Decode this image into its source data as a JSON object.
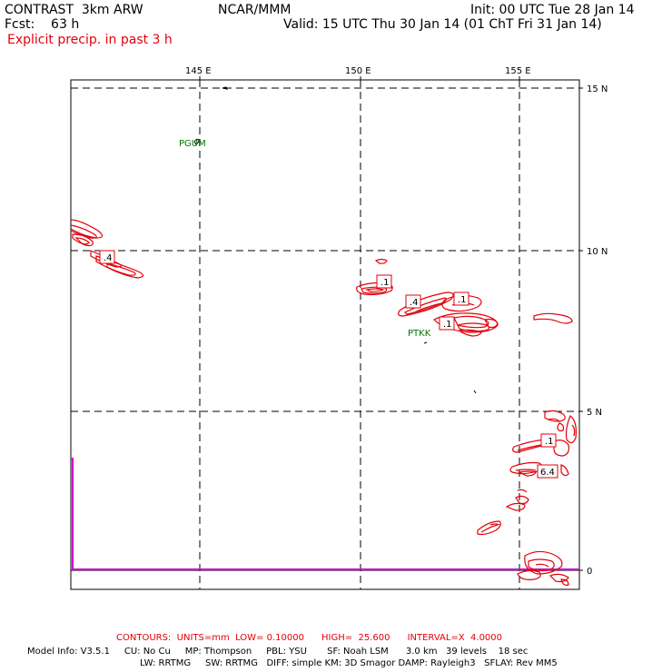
{
  "header": {
    "model": "CONTRAST  3km ARW",
    "org": "NCAR/MMM",
    "init": "Init: 00 UTC Tue 28 Jan 14",
    "fcst": "Fcst:    63 h",
    "valid": "Valid: 15 UTC Thu 30 Jan 14 (01 ChT Fri 31 Jan 14)",
    "field": "Explicit precip. in past 3 h"
  },
  "axes": {
    "lon_labels": [
      "145 E",
      "150 E",
      "155 E"
    ],
    "lat_labels": [
      "15 N",
      "10 N",
      "5 N",
      "0"
    ]
  },
  "stations": [
    "PGUM",
    "PTKK"
  ],
  "contour_labels": [
    ".4",
    ".1",
    ".4",
    ".1",
    ".1",
    ".1",
    "6.4"
  ],
  "footer": {
    "contours": "CONTOURS:  UNITS=mm  LOW= 0.10000      HIGH=  25.600      INTERVAL=X  4.0000",
    "model_info_1": "Model Info: V3.5.1     CU: No Cu     MP: Thompson     PBL: YSU       SF: Noah LSM      3.0 km   39 levels    18 sec",
    "model_info_2": "LW: RRTMG     SW: RRTMG   DIFF: simple KM: 3D Smagor DAMP: Rayleigh3   SFLAY: Rev MM5"
  },
  "colors": {
    "contour": "#e3000b",
    "station": "#007a00",
    "boundary": "#cc00cc",
    "grid": "#000000"
  }
}
